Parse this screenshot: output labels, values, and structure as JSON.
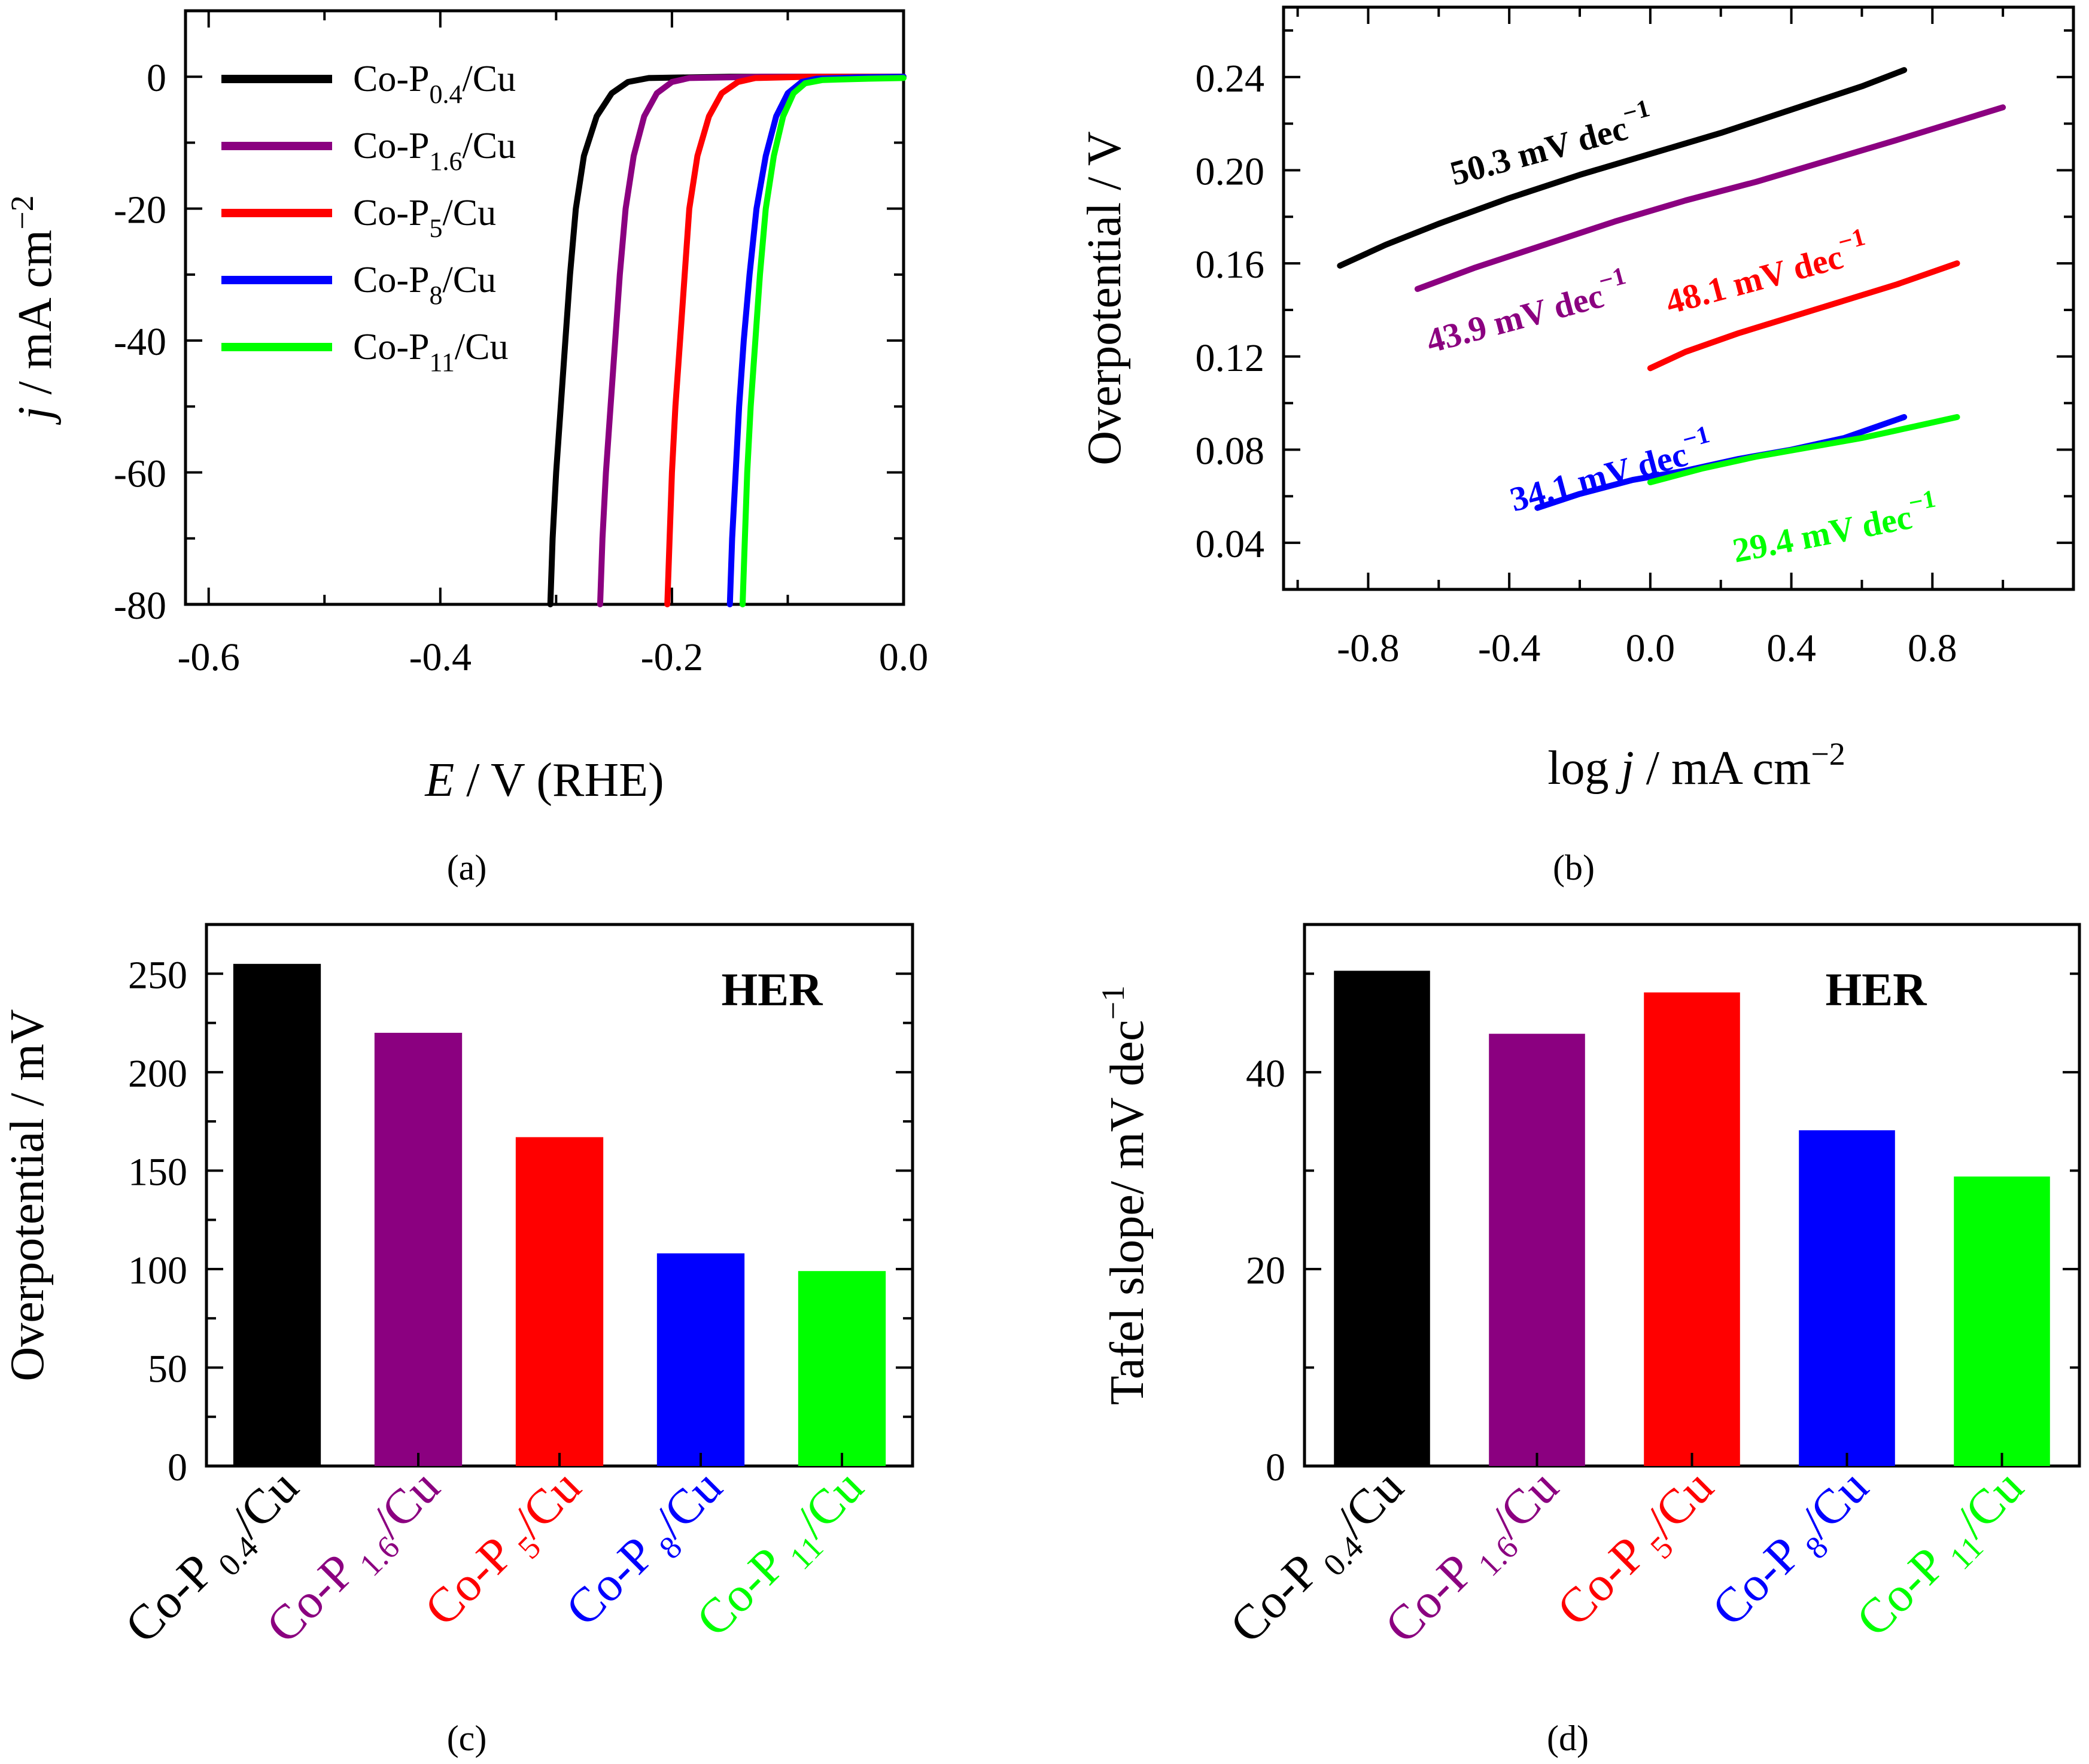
{
  "colors": {
    "Co-P0.4/Cu": "#000000",
    "Co-P1.6/Cu": "#8b0080",
    "Co-P5/Cu": "#ff0000",
    "Co-P8/Cu": "#0000ff",
    "Co-P11/Cu": "#00ff00"
  },
  "series": [
    {
      "name": "Co-P0.4/Cu",
      "label_main": "Co-P",
      "label_sub": "0.4",
      "label_suffix": "/Cu"
    },
    {
      "name": "Co-P1.6/Cu",
      "label_main": "Co-P",
      "label_sub": "1.6",
      "label_suffix": "/Cu"
    },
    {
      "name": "Co-P5/Cu",
      "label_main": "Co-P",
      "label_sub": "5",
      "label_suffix": "/Cu"
    },
    {
      "name": "Co-P8/Cu",
      "label_main": "Co-P",
      "label_sub": "8",
      "label_suffix": "/Cu"
    },
    {
      "name": "Co-P11/Cu",
      "label_main": "Co-P",
      "label_sub": "11",
      "label_suffix": "/Cu"
    }
  ],
  "chart_data": [
    {
      "panel": "(a)",
      "type": "line",
      "xlabel_italic": "E",
      "xlabel_rest": " / V (RHE)",
      "ylabel_italic": "j",
      "ylabel_rest": " / mA cm",
      "ylabel_sup": "−2",
      "xlim": [
        -0.62,
        0.0
      ],
      "ylim": [
        -80,
        10
      ],
      "xticks": [
        -0.6,
        -0.4,
        -0.2,
        0.0
      ],
      "xtick_labels": [
        "-0.6",
        "-0.4",
        "-0.2",
        "0.0"
      ],
      "yticks": [
        0,
        -20,
        -40,
        -60,
        -80
      ],
      "ytick_labels": [
        "0",
        "-20",
        "-40",
        "-60",
        "-80"
      ],
      "legend": "top-left",
      "series": [
        {
          "name": "Co-P0.4/Cu",
          "points": [
            [
              -0.305,
              -80
            ],
            [
              -0.303,
              -70
            ],
            [
              -0.3,
              -60
            ],
            [
              -0.296,
              -50
            ],
            [
              -0.292,
              -40
            ],
            [
              -0.288,
              -30
            ],
            [
              -0.283,
              -20
            ],
            [
              -0.276,
              -12
            ],
            [
              -0.265,
              -6
            ],
            [
              -0.252,
              -2.5
            ],
            [
              -0.238,
              -0.8
            ],
            [
              -0.22,
              -0.2
            ],
            [
              -0.15,
              0
            ],
            [
              0.0,
              0
            ]
          ]
        },
        {
          "name": "Co-P1.6/Cu",
          "points": [
            [
              -0.262,
              -80
            ],
            [
              -0.26,
              -70
            ],
            [
              -0.257,
              -60
            ],
            [
              -0.253,
              -50
            ],
            [
              -0.249,
              -40
            ],
            [
              -0.245,
              -30
            ],
            [
              -0.24,
              -20
            ],
            [
              -0.233,
              -12
            ],
            [
              -0.224,
              -6
            ],
            [
              -0.213,
              -2.5
            ],
            [
              -0.2,
              -0.8
            ],
            [
              -0.185,
              -0.2
            ],
            [
              -0.12,
              0
            ],
            [
              0.0,
              0
            ]
          ]
        },
        {
          "name": "Co-P5/Cu",
          "points": [
            [
              -0.204,
              -80
            ],
            [
              -0.202,
              -70
            ],
            [
              -0.2,
              -60
            ],
            [
              -0.197,
              -50
            ],
            [
              -0.193,
              -40
            ],
            [
              -0.189,
              -30
            ],
            [
              -0.185,
              -20
            ],
            [
              -0.178,
              -12
            ],
            [
              -0.168,
              -6
            ],
            [
              -0.157,
              -2.5
            ],
            [
              -0.143,
              -0.8
            ],
            [
              -0.128,
              -0.2
            ],
            [
              -0.08,
              0
            ],
            [
              0.0,
              0
            ]
          ]
        },
        {
          "name": "Co-P8/Cu",
          "points": [
            [
              -0.15,
              -80
            ],
            [
              -0.148,
              -70
            ],
            [
              -0.145,
              -60
            ],
            [
              -0.142,
              -50
            ],
            [
              -0.138,
              -40
            ],
            [
              -0.133,
              -30
            ],
            [
              -0.127,
              -20
            ],
            [
              -0.119,
              -12
            ],
            [
              -0.11,
              -6
            ],
            [
              -0.1,
              -2.5
            ],
            [
              -0.088,
              -0.8
            ],
            [
              -0.075,
              -0.3
            ],
            [
              -0.04,
              -0.1
            ],
            [
              0.0,
              0
            ]
          ]
        },
        {
          "name": "Co-P11/Cu",
          "points": [
            [
              -0.139,
              -80
            ],
            [
              -0.137,
              -70
            ],
            [
              -0.135,
              -60
            ],
            [
              -0.132,
              -50
            ],
            [
              -0.128,
              -40
            ],
            [
              -0.124,
              -30
            ],
            [
              -0.119,
              -20
            ],
            [
              -0.112,
              -12
            ],
            [
              -0.104,
              -6
            ],
            [
              -0.095,
              -2.5
            ],
            [
              -0.085,
              -1
            ],
            [
              -0.07,
              -0.5
            ],
            [
              -0.03,
              -0.3
            ],
            [
              0.0,
              -0.2
            ]
          ]
        }
      ]
    },
    {
      "panel": "(b)",
      "type": "line",
      "xlabel_pre": "log ",
      "xlabel_italic": "j",
      "xlabel_rest": " / mA cm",
      "xlabel_sup": "−2",
      "ylabel": "Overpotential / V",
      "xlim": [
        -1.04,
        1.2
      ],
      "ylim": [
        0.02,
        0.27
      ],
      "xticks": [
        -0.8,
        -0.4,
        0.0,
        0.4,
        0.8
      ],
      "xtick_labels": [
        "-0.8",
        "-0.4",
        "0.0",
        "0.4",
        "0.8"
      ],
      "yticks": [
        0.04,
        0.08,
        0.12,
        0.16,
        0.2,
        0.24
      ],
      "ytick_labels": [
        "0.04",
        "0.08",
        "0.12",
        "0.16",
        "0.20",
        "0.24"
      ],
      "series": [
        {
          "name": "Co-P0.4/Cu",
          "points": [
            [
              -0.88,
              0.159
            ],
            [
              -0.75,
              0.168
            ],
            [
              -0.6,
              0.177
            ],
            [
              -0.4,
              0.188
            ],
            [
              -0.2,
              0.198
            ],
            [
              0.0,
              0.207
            ],
            [
              0.2,
              0.216
            ],
            [
              0.4,
              0.226
            ],
            [
              0.6,
              0.236
            ],
            [
              0.72,
              0.243
            ]
          ],
          "slope_label": "50.3 mV dec",
          "slope_sup": "−1"
        },
        {
          "name": "Co-P1.6/Cu",
          "points": [
            [
              -0.66,
              0.149
            ],
            [
              -0.5,
              0.158
            ],
            [
              -0.3,
              0.168
            ],
            [
              -0.1,
              0.178
            ],
            [
              0.1,
              0.187
            ],
            [
              0.3,
              0.195
            ],
            [
              0.5,
              0.204
            ],
            [
              0.7,
              0.213
            ],
            [
              0.85,
              0.22
            ],
            [
              1.0,
              0.227
            ]
          ],
          "slope_label": "43.9 mV dec",
          "slope_sup": "−1"
        },
        {
          "name": "Co-P5/Cu",
          "points": [
            [
              0.0,
              0.115
            ],
            [
              0.1,
              0.122
            ],
            [
              0.25,
              0.13
            ],
            [
              0.4,
              0.137
            ],
            [
              0.55,
              0.144
            ],
            [
              0.7,
              0.151
            ],
            [
              0.87,
              0.16
            ]
          ],
          "slope_label": "48.1 mV dec",
          "slope_sup": "−1"
        },
        {
          "name": "Co-P8/Cu",
          "points": [
            [
              -0.32,
              0.055
            ],
            [
              -0.2,
              0.061
            ],
            [
              -0.05,
              0.067
            ],
            [
              0.1,
              0.071
            ],
            [
              0.25,
              0.076
            ],
            [
              0.4,
              0.08
            ],
            [
              0.55,
              0.085
            ],
            [
              0.72,
              0.094
            ]
          ],
          "slope_label": "34.1 mV dec",
          "slope_sup": "−1"
        },
        {
          "name": "Co-P11/Cu",
          "points": [
            [
              0.0,
              0.066
            ],
            [
              0.15,
              0.072
            ],
            [
              0.3,
              0.077
            ],
            [
              0.45,
              0.081
            ],
            [
              0.6,
              0.085
            ],
            [
              0.75,
              0.09
            ],
            [
              0.87,
              0.094
            ]
          ],
          "slope_label": "29.4 mV dec",
          "slope_sup": "−1"
        }
      ]
    },
    {
      "panel": "(c)",
      "type": "bar",
      "ylabel": "Overpotential / mV",
      "annotation": "HER",
      "ylim": [
        0,
        275
      ],
      "yticks": [
        0,
        50,
        100,
        150,
        200,
        250
      ],
      "ytick_labels": [
        "0",
        "50",
        "100",
        "150",
        "200",
        "250"
      ],
      "categories": [
        "Co-P0.4/Cu",
        "Co-P1.6/Cu",
        "Co-P5/Cu",
        "Co-P8/Cu",
        "Co-P11/Cu"
      ],
      "values": [
        255,
        220,
        167,
        108,
        99
      ]
    },
    {
      "panel": "(d)",
      "type": "bar",
      "ylabel": "Tafel slope/ mV dec",
      "ylabel_sup": "−1",
      "annotation": "HER",
      "ylim": [
        0,
        55
      ],
      "yticks": [
        0,
        20,
        40
      ],
      "ytick_labels": [
        "0",
        "20",
        "40"
      ],
      "categories": [
        "Co-P0.4/Cu",
        "Co-P1.6/Cu",
        "Co-P5/Cu",
        "Co-P8/Cu",
        "Co-P11/Cu"
      ],
      "values": [
        50.3,
        43.9,
        48.1,
        34.1,
        29.4
      ]
    }
  ]
}
